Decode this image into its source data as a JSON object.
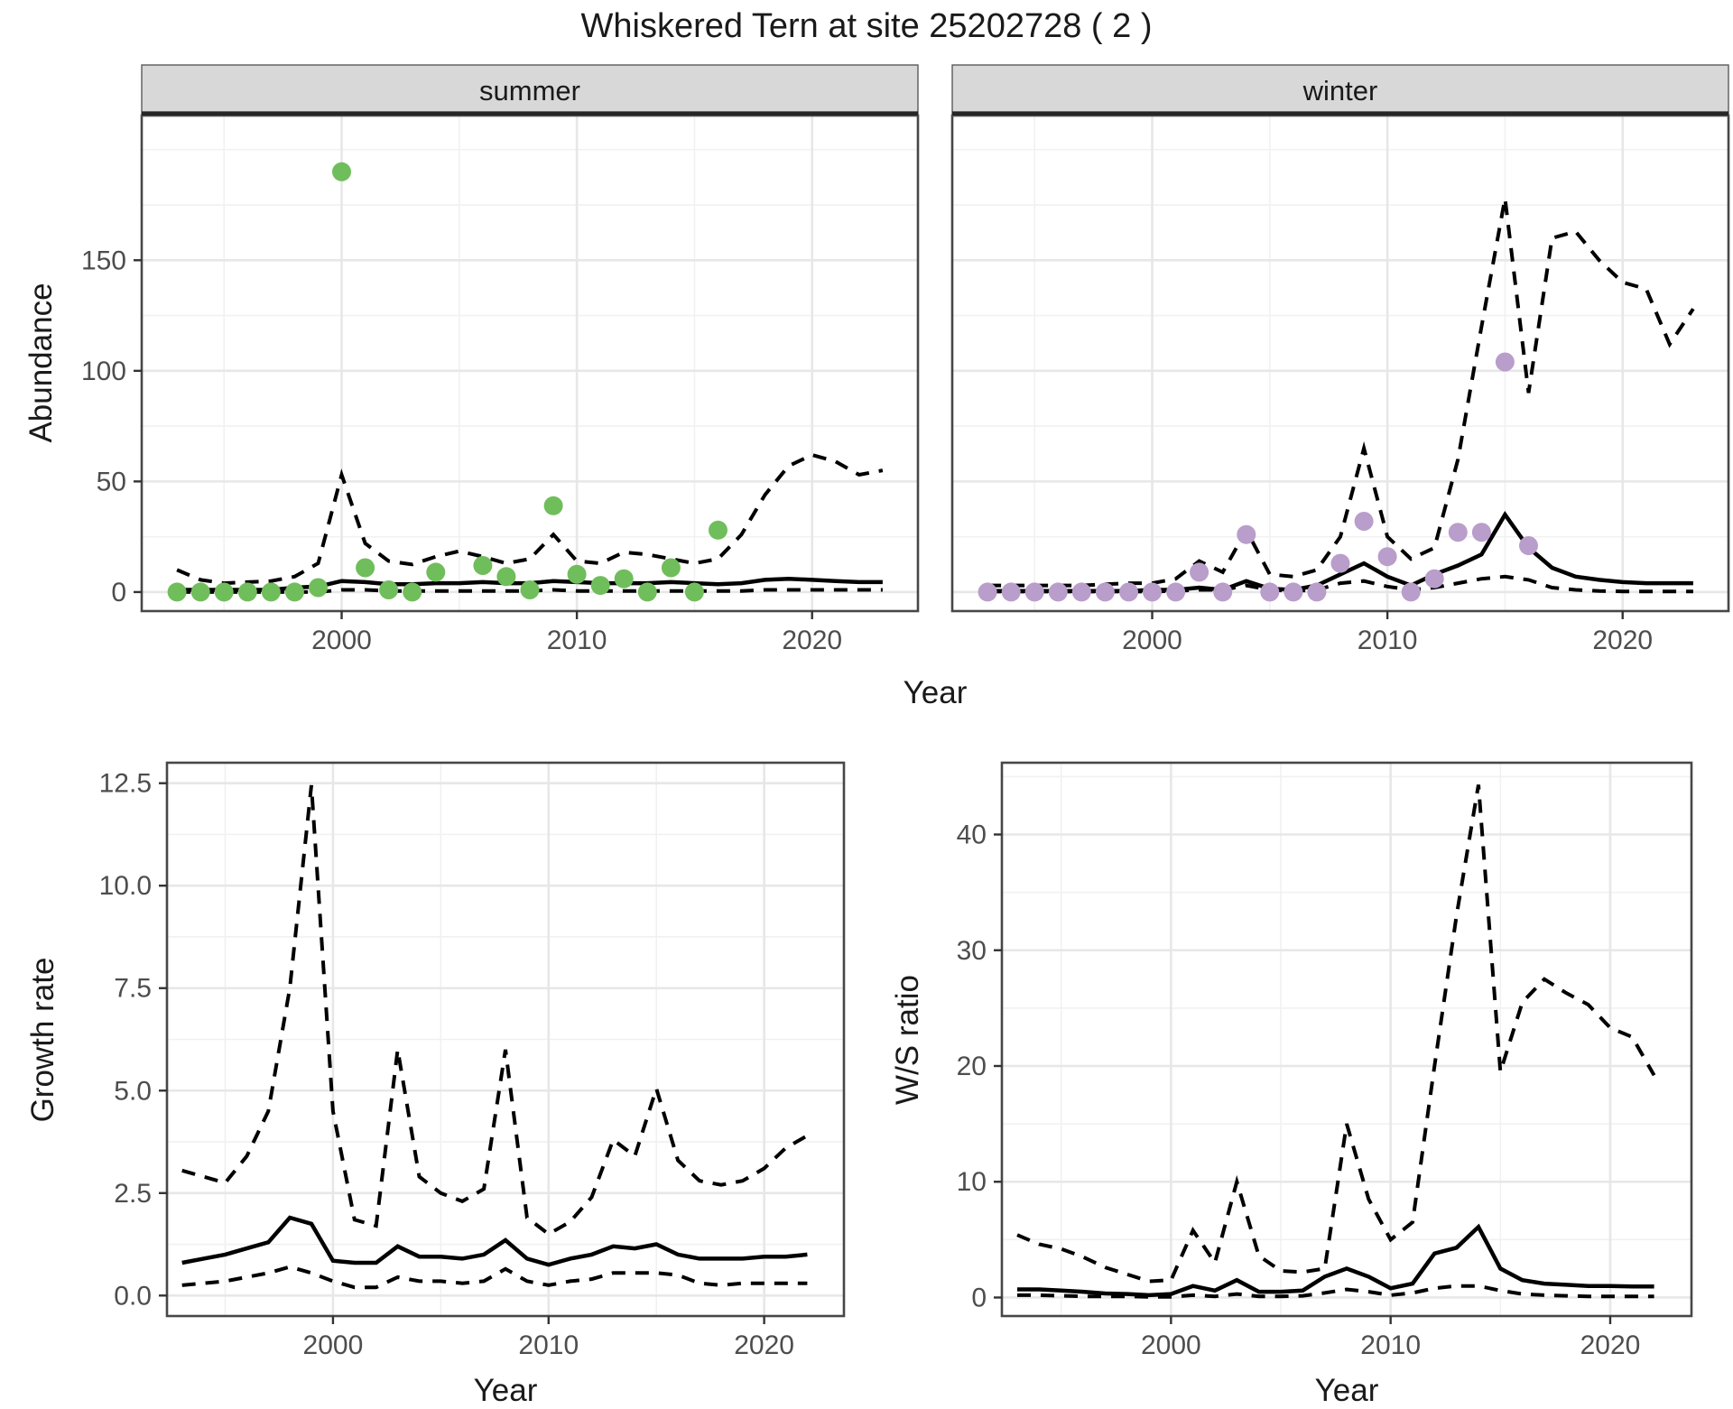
{
  "title": "Whiskered Tern at site 25202728 ( 2 )",
  "colors": {
    "summer_point": "#6FBE5B",
    "winter_point": "#B99DCA",
    "line": "#000000",
    "grid_major": "#E7E7E7",
    "grid_minor": "#F1F1F1",
    "strip_bg": "#D8D8D8",
    "strip_border": "#5A5A5A",
    "strip_underline": "#262626",
    "panel_border": "#474747",
    "tick_mark": "#333333",
    "tick_text": "#4D4D4D",
    "title_text": "#1A1A1A",
    "panel_bg": "#FFFFFF"
  },
  "chart_data": [
    {
      "id": "abundance-summer",
      "type": "line",
      "facet_label": "summer",
      "xlabel": "Year",
      "ylabel": "Abundance",
      "xlim": [
        1991.5,
        2024.5
      ],
      "ylim": [
        -8.6,
        215.4
      ],
      "xticks": [
        2000,
        2010,
        2020
      ],
      "xtick_labels": [
        "2000",
        "2010",
        "2020"
      ],
      "xminor": [
        1995,
        2005,
        2015
      ],
      "yticks": [
        0,
        50,
        100,
        150
      ],
      "ytick_labels": [
        "0",
        "50",
        "100",
        "150"
      ],
      "yminor": [
        25,
        75,
        125,
        175,
        200
      ],
      "grid": true,
      "legend": "none",
      "series": [
        {
          "name": "upper-95ci",
          "style": "dashed",
          "x": [
            1993,
            1994,
            1995,
            1996,
            1997,
            1998,
            1999,
            2000,
            2001,
            2002,
            2003,
            2004,
            2005,
            2006,
            2007,
            2008,
            2009,
            2010,
            2011,
            2012,
            2013,
            2014,
            2015,
            2016,
            2017,
            2018,
            2019,
            2020,
            2021,
            2022,
            2023
          ],
          "y": [
            10,
            5.5,
            4,
            4.5,
            5,
            7,
            13,
            53,
            22,
            14,
            12.5,
            16,
            18.5,
            16,
            13,
            15,
            26,
            14,
            13,
            18,
            17,
            15,
            13,
            15,
            26,
            44,
            57,
            62,
            59,
            53,
            55
          ]
        },
        {
          "name": "lower-95ci",
          "style": "dashed",
          "x": [
            1993,
            1994,
            1995,
            1996,
            1997,
            1998,
            1999,
            2000,
            2001,
            2002,
            2003,
            2004,
            2005,
            2006,
            2007,
            2008,
            2009,
            2010,
            2011,
            2012,
            2013,
            2014,
            2015,
            2016,
            2017,
            2018,
            2019,
            2020,
            2021,
            2022,
            2023
          ],
          "y": [
            0,
            0,
            0,
            0,
            0,
            0,
            0,
            1,
            1,
            0.5,
            0.5,
            0.5,
            0.5,
            0.5,
            0.5,
            0.5,
            1,
            0.5,
            0.5,
            0.5,
            0.5,
            0.5,
            0.5,
            0.5,
            0.5,
            1,
            1,
            1,
            1,
            1,
            1
          ]
        },
        {
          "name": "median",
          "style": "solid",
          "x": [
            1993,
            1994,
            1995,
            1996,
            1997,
            1998,
            1999,
            2000,
            2001,
            2002,
            2003,
            2004,
            2005,
            2006,
            2007,
            2008,
            2009,
            2010,
            2011,
            2012,
            2013,
            2014,
            2015,
            2016,
            2017,
            2018,
            2019,
            2020,
            2021,
            2022,
            2023
          ],
          "y": [
            1,
            1,
            1,
            1,
            1,
            2,
            2.5,
            5,
            4.5,
            3.5,
            3.5,
            4,
            4,
            4.5,
            4,
            4,
            5,
            4.5,
            4,
            4,
            4,
            4.5,
            4,
            3.5,
            4,
            5.5,
            6,
            5.5,
            5,
            4.5,
            4.5
          ]
        }
      ],
      "points": {
        "name": "observed-counts",
        "color": "#6FBE5B",
        "x": [
          1993,
          1994,
          1995,
          1996,
          1997,
          1998,
          1999,
          2000,
          2001,
          2002,
          2003,
          2004,
          2006,
          2007,
          2008,
          2009,
          2010,
          2011,
          2012,
          2013,
          2014,
          2015,
          2016
        ],
        "y": [
          0,
          0,
          0,
          0,
          0,
          0,
          2,
          190,
          11,
          1,
          0,
          9,
          12,
          7,
          1,
          39,
          8,
          3,
          6,
          0,
          11,
          0,
          28
        ]
      }
    },
    {
      "id": "abundance-winter",
      "type": "line",
      "facet_label": "winter",
      "xlabel": "Year",
      "ylabel": "Abundance",
      "xlim": [
        1991.5,
        2024.5
      ],
      "ylim": [
        -8.6,
        215.4
      ],
      "xticks": [
        2000,
        2010,
        2020
      ],
      "xtick_labels": [
        "2000",
        "2010",
        "2020"
      ],
      "xminor": [
        1995,
        2005,
        2015
      ],
      "yticks": [
        0,
        50,
        100,
        150
      ],
      "ytick_labels": [
        "0",
        "50",
        "100",
        "150"
      ],
      "yminor": [
        25,
        75,
        125,
        175,
        200
      ],
      "grid": true,
      "legend": "none",
      "series": [
        {
          "name": "upper-95ci",
          "style": "dashed",
          "x": [
            1993,
            1994,
            1995,
            1996,
            1997,
            1998,
            1999,
            2000,
            2001,
            2002,
            2003,
            2004,
            2005,
            2006,
            2007,
            2008,
            2009,
            2010,
            2011,
            2012,
            2013,
            2014,
            2015,
            2016,
            2017,
            2018,
            2019,
            2020,
            2021,
            2022,
            2023
          ],
          "y": [
            3,
            3,
            3,
            3,
            3,
            3.5,
            4,
            4,
            6,
            14,
            9,
            28,
            8,
            7,
            10,
            25,
            65,
            25,
            15,
            20,
            60,
            120,
            178,
            90,
            160,
            163,
            150,
            140,
            137,
            112,
            128
          ]
        },
        {
          "name": "lower-95ci",
          "style": "dashed",
          "x": [
            1993,
            1994,
            1995,
            1996,
            1997,
            1998,
            1999,
            2000,
            2001,
            2002,
            2003,
            2004,
            2005,
            2006,
            2007,
            2008,
            2009,
            2010,
            2011,
            2012,
            2013,
            2014,
            2015,
            2016,
            2017,
            2018,
            2019,
            2020,
            2021,
            2022,
            2023
          ],
          "y": [
            0.2,
            0.2,
            0.2,
            0.2,
            0.2,
            0.2,
            0.2,
            0.2,
            0.5,
            1,
            1,
            3,
            1,
            0.5,
            1,
            4,
            5,
            2.5,
            1,
            2,
            4,
            6,
            7,
            5.5,
            2,
            1,
            0.5,
            0.3,
            0.3,
            0.3,
            0.3
          ]
        },
        {
          "name": "median",
          "style": "solid",
          "x": [
            1993,
            1994,
            1995,
            1996,
            1997,
            1998,
            1999,
            2000,
            2001,
            2002,
            2003,
            2004,
            2005,
            2006,
            2007,
            2008,
            2009,
            2010,
            2011,
            2012,
            2013,
            2014,
            2015,
            2016,
            2017,
            2018,
            2019,
            2020,
            2021,
            2022,
            2023
          ],
          "y": [
            0.5,
            0.5,
            0.5,
            0.5,
            0.5,
            0.5,
            0.5,
            1,
            1,
            2,
            1,
            5,
            1.5,
            1,
            3,
            8,
            13,
            7,
            3,
            8,
            12,
            17,
            35,
            20,
            11,
            7,
            5.5,
            4.5,
            4,
            4,
            4
          ]
        }
      ],
      "points": {
        "name": "observed-counts",
        "color": "#B99DCA",
        "x": [
          1993,
          1994,
          1995,
          1996,
          1997,
          1998,
          1999,
          2000,
          2001,
          2002,
          2003,
          2004,
          2005,
          2006,
          2007,
          2008,
          2009,
          2010,
          2011,
          2012,
          2013,
          2014,
          2015,
          2016
        ],
        "y": [
          0,
          0,
          0,
          0,
          0,
          0,
          0,
          0,
          0,
          9,
          0,
          26,
          0,
          0,
          0,
          13,
          32,
          16,
          0,
          6,
          27,
          27,
          104,
          21
        ]
      }
    },
    {
      "id": "growth-rate",
      "type": "line",
      "facet_label": "",
      "xlabel": "Year",
      "ylabel": "Growth rate",
      "xlim": [
        1992.3,
        2023.7
      ],
      "ylim": [
        -0.5,
        13.0
      ],
      "xticks": [
        2000,
        2010,
        2020
      ],
      "xtick_labels": [
        "2000",
        "2010",
        "2020"
      ],
      "xminor": [
        1995,
        2005,
        2015
      ],
      "yticks": [
        0,
        2.5,
        5,
        7.5,
        10,
        12.5
      ],
      "ytick_labels": [
        "0.0",
        "2.5",
        "5.0",
        "7.5",
        "10.0",
        "12.5"
      ],
      "yminor": [
        1.25,
        3.75,
        6.25,
        8.75,
        11.25
      ],
      "grid": true,
      "legend": "none",
      "series": [
        {
          "name": "upper-95ci",
          "style": "dashed",
          "x": [
            1993,
            1994,
            1995,
            1996,
            1997,
            1998,
            1999,
            2000,
            2001,
            2002,
            2003,
            2004,
            2005,
            2006,
            2007,
            2008,
            2009,
            2010,
            2011,
            2012,
            2013,
            2014,
            2015,
            2016,
            2017,
            2018,
            2019,
            2020,
            2021,
            2022
          ],
          "y": [
            3.05,
            2.9,
            2.75,
            3.4,
            4.5,
            7.5,
            12.45,
            4.5,
            1.85,
            1.7,
            6,
            2.9,
            2.5,
            2.3,
            2.6,
            6,
            1.9,
            1.5,
            1.8,
            2.4,
            3.8,
            3.4,
            5.05,
            3.3,
            2.8,
            2.7,
            2.8,
            3.1,
            3.6,
            3.9
          ]
        },
        {
          "name": "lower-95ci",
          "style": "dashed",
          "x": [
            1993,
            1994,
            1995,
            1996,
            1997,
            1998,
            1999,
            2000,
            2001,
            2002,
            2003,
            2004,
            2005,
            2006,
            2007,
            2008,
            2009,
            2010,
            2011,
            2012,
            2013,
            2014,
            2015,
            2016,
            2017,
            2018,
            2019,
            2020,
            2021,
            2022
          ],
          "y": [
            0.25,
            0.3,
            0.35,
            0.45,
            0.55,
            0.7,
            0.55,
            0.35,
            0.2,
            0.2,
            0.45,
            0.35,
            0.35,
            0.3,
            0.35,
            0.65,
            0.35,
            0.25,
            0.35,
            0.4,
            0.55,
            0.55,
            0.55,
            0.5,
            0.3,
            0.25,
            0.3,
            0.3,
            0.3,
            0.3
          ]
        },
        {
          "name": "median",
          "style": "solid",
          "x": [
            1993,
            1994,
            1995,
            1996,
            1997,
            1998,
            1999,
            2000,
            2001,
            2002,
            2003,
            2004,
            2005,
            2006,
            2007,
            2008,
            2009,
            2010,
            2011,
            2012,
            2013,
            2014,
            2015,
            2016,
            2017,
            2018,
            2019,
            2020,
            2021,
            2022
          ],
          "y": [
            0.8,
            0.9,
            1.0,
            1.15,
            1.3,
            1.9,
            1.75,
            0.85,
            0.8,
            0.8,
            1.2,
            0.95,
            0.95,
            0.9,
            1.0,
            1.35,
            0.9,
            0.75,
            0.9,
            1.0,
            1.2,
            1.15,
            1.25,
            1.0,
            0.9,
            0.9,
            0.9,
            0.95,
            0.95,
            1.0
          ]
        }
      ],
      "points": null
    },
    {
      "id": "ws-ratio",
      "type": "line",
      "facet_label": "",
      "xlabel": "Year",
      "ylabel": "W/S ratio",
      "xlim": [
        1992.3,
        2023.7
      ],
      "ylim": [
        -1.6,
        46.2
      ],
      "xticks": [
        2000,
        2010,
        2020
      ],
      "xtick_labels": [
        "2000",
        "2010",
        "2020"
      ],
      "xminor": [
        1995,
        2005,
        2015
      ],
      "yticks": [
        0,
        10,
        20,
        30,
        40
      ],
      "ytick_labels": [
        "0",
        "10",
        "20",
        "30",
        "40"
      ],
      "yminor": [
        5,
        15,
        25,
        35,
        45
      ],
      "grid": true,
      "legend": "none",
      "series": [
        {
          "name": "upper-95ci",
          "style": "dashed",
          "x": [
            1993,
            1994,
            1995,
            1996,
            1997,
            1998,
            1999,
            2000,
            2001,
            2002,
            2003,
            2004,
            2005,
            2006,
            2007,
            2008,
            2009,
            2010,
            2011,
            2012,
            2013,
            2014,
            2015,
            2016,
            2017,
            2018,
            2019,
            2020,
            2021,
            2022
          ],
          "y": [
            5.4,
            4.6,
            4.2,
            3.5,
            2.6,
            2.0,
            1.4,
            1.5,
            5.8,
            3.0,
            10.0,
            3.6,
            2.3,
            2.2,
            2.5,
            15.0,
            8.5,
            5.0,
            6.5,
            20.0,
            33.0,
            44.3,
            19.5,
            25.5,
            27.5,
            26.3,
            25.3,
            23.3,
            22.5,
            19.2
          ]
        },
        {
          "name": "lower-95ci",
          "style": "dashed",
          "x": [
            1993,
            1994,
            1995,
            1996,
            1997,
            1998,
            1999,
            2000,
            2001,
            2002,
            2003,
            2004,
            2005,
            2006,
            2007,
            2008,
            2009,
            2010,
            2011,
            2012,
            2013,
            2014,
            2015,
            2016,
            2017,
            2018,
            2019,
            2020,
            2021,
            2022
          ],
          "y": [
            0.2,
            0.2,
            0.15,
            0.1,
            0.1,
            0.1,
            0.05,
            0.05,
            0.2,
            0.1,
            0.3,
            0.1,
            0.1,
            0.15,
            0.4,
            0.7,
            0.5,
            0.2,
            0.4,
            0.8,
            1.0,
            1.0,
            0.6,
            0.3,
            0.2,
            0.15,
            0.1,
            0.1,
            0.1,
            0.1
          ]
        },
        {
          "name": "median",
          "style": "solid",
          "x": [
            1993,
            1994,
            1995,
            1996,
            1997,
            1998,
            1999,
            2000,
            2001,
            2002,
            2003,
            2004,
            2005,
            2006,
            2007,
            2008,
            2009,
            2010,
            2011,
            2012,
            2013,
            2014,
            2015,
            2016,
            2017,
            2018,
            2019,
            2020,
            2021,
            2022
          ],
          "y": [
            0.7,
            0.7,
            0.6,
            0.5,
            0.35,
            0.3,
            0.2,
            0.3,
            1.0,
            0.6,
            1.5,
            0.5,
            0.5,
            0.6,
            1.8,
            2.5,
            1.8,
            0.8,
            1.2,
            3.8,
            4.3,
            6.1,
            2.5,
            1.5,
            1.2,
            1.1,
            1.0,
            1.0,
            0.95,
            0.95
          ]
        }
      ],
      "points": null
    }
  ]
}
